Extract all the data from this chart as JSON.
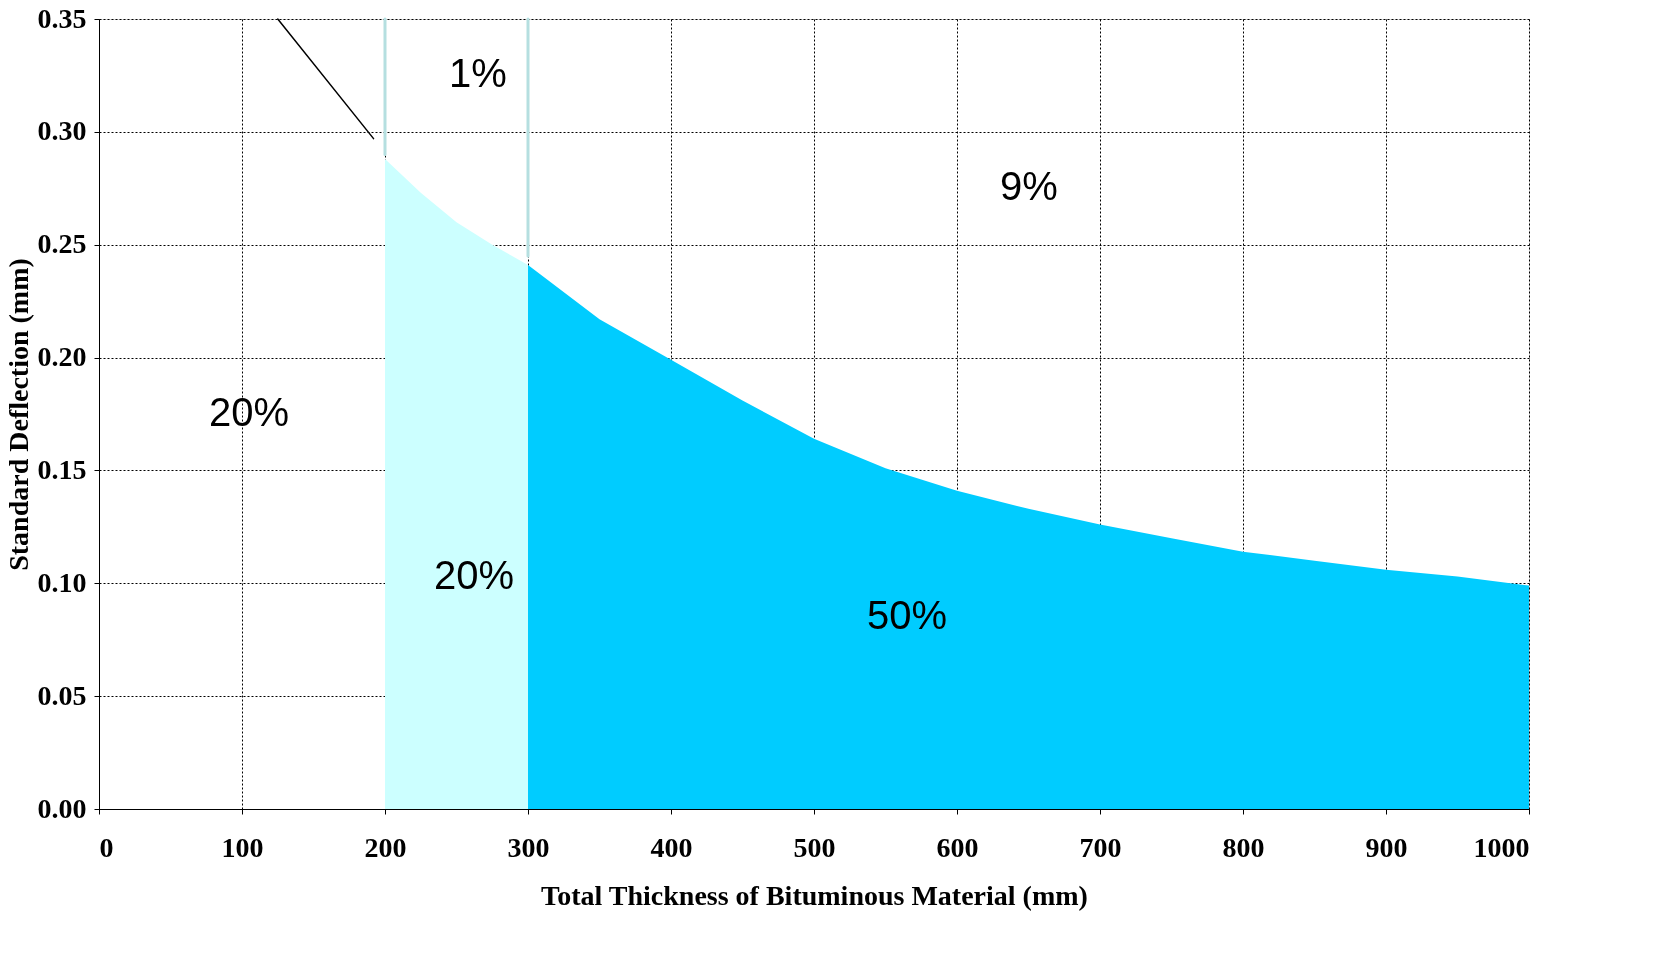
{
  "chart_data": {
    "type": "area",
    "xlabel": "Total Thickness of Bituminous Material (mm)",
    "ylabel": "Standard Deflection (mm)",
    "series": [
      {
        "color": "#ccffff",
        "x": [
          200,
          225,
          250,
          275,
          300
        ],
        "values": [
          0.288,
          0.273,
          0.26,
          0.25,
          0.241
        ]
      },
      {
        "color": "#00ccff",
        "x": [
          300,
          350,
          400,
          450,
          500,
          550,
          600,
          650,
          700,
          750,
          800,
          850,
          900,
          950,
          1000
        ],
        "values": [
          0.241,
          0.217,
          0.199,
          0.181,
          0.164,
          0.151,
          0.141,
          0.133,
          0.126,
          0.12,
          0.114,
          0.11,
          0.106,
          0.103,
          0.099
        ]
      },
      {
        "type": "line",
        "color": "#b5dfe0",
        "x": [
          200,
          200
        ],
        "values": [
          0.35,
          0.29
        ]
      },
      {
        "type": "line",
        "color": "#b5dfe0",
        "x": [
          300,
          300
        ],
        "values": [
          0.35,
          0.245
        ]
      },
      {
        "type": "line",
        "color": "#000000",
        "x": [
          125,
          192
        ],
        "values": [
          0.35,
          0.297
        ]
      }
    ],
    "annotations": [
      "1%",
      "9%",
      "20%",
      "20%",
      "50%"
    ],
    "xlim": [
      0,
      1000
    ],
    "xticks": [
      0,
      100,
      200,
      300,
      400,
      500,
      600,
      700,
      800,
      900,
      1000
    ],
    "ylim": [
      0,
      0.35
    ],
    "yticks": [
      {
        "value": 0,
        "label": "0.00"
      },
      {
        "value": 0.05,
        "label": "0.05"
      },
      {
        "value": 0.1,
        "label": "0.10"
      },
      {
        "value": 0.15,
        "label": "0.15"
      },
      {
        "value": 0.2,
        "label": "0.20"
      },
      {
        "value": 0.25,
        "label": "0.25"
      },
      {
        "value": 0.3,
        "label": "0.30"
      },
      {
        "value": 0.35,
        "label": "0.35"
      }
    ],
    "grid": true
  }
}
